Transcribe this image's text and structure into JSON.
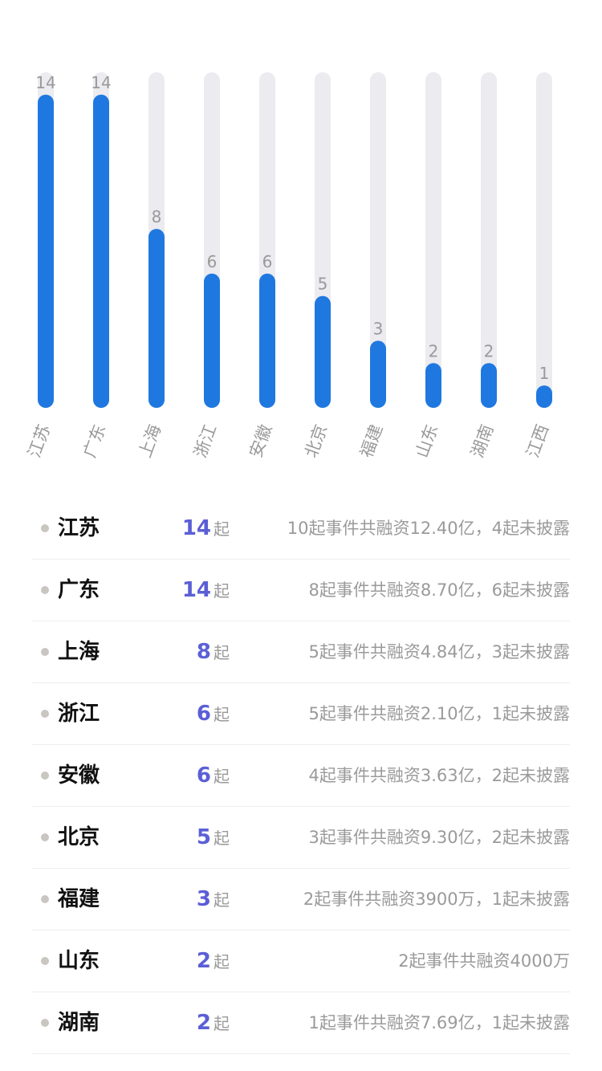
{
  "colors": {
    "bar_fill": "#1f78e0",
    "bar_track": "#ebebf0",
    "count_accent": "#5b5fd6",
    "muted_text": "#9a9a9a",
    "bullet": "#c9c6c1"
  },
  "chart_data": {
    "type": "bar",
    "categories": [
      "江苏",
      "广东",
      "上海",
      "浙江",
      "安徽",
      "北京",
      "福建",
      "山东",
      "湖南",
      "江西"
    ],
    "values": [
      14,
      14,
      8,
      6,
      6,
      5,
      3,
      2,
      2,
      1
    ],
    "ylim": [
      0,
      15
    ],
    "data_labels": true,
    "category_label_rotation": "-70deg",
    "grid": false,
    "legend": false
  },
  "list": {
    "unit": "起",
    "items": [
      {
        "name": "江苏",
        "count": "14",
        "summary": "10起事件共融资12.40亿，4起未披露"
      },
      {
        "name": "广东",
        "count": "14",
        "summary": "8起事件共融资8.70亿，6起未披露"
      },
      {
        "name": "上海",
        "count": "8",
        "summary": "5起事件共融资4.84亿，3起未披露"
      },
      {
        "name": "浙江",
        "count": "6",
        "summary": "5起事件共融资2.10亿，1起未披露"
      },
      {
        "name": "安徽",
        "count": "6",
        "summary": "4起事件共融资3.63亿，2起未披露"
      },
      {
        "name": "北京",
        "count": "5",
        "summary": "3起事件共融资9.30亿，2起未披露"
      },
      {
        "name": "福建",
        "count": "3",
        "summary": "2起事件共融资3900万，1起未披露"
      },
      {
        "name": "山东",
        "count": "2",
        "summary": "2起事件共融资4000万"
      },
      {
        "name": "湖南",
        "count": "2",
        "summary": "1起事件共融资7.69亿，1起未披露"
      }
    ]
  }
}
